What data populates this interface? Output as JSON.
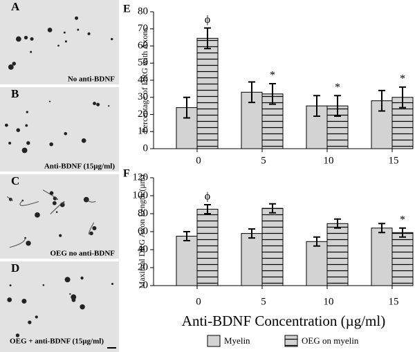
{
  "panels": [
    {
      "label": "A",
      "caption": "No anti-BDNF"
    },
    {
      "label": "B",
      "caption": "Anti-BDNF (15µg/ml)"
    },
    {
      "label": "C",
      "caption": "OEG no anti-BDNF"
    },
    {
      "label": "D",
      "caption": "OEG + anti-BDNF (15µg/ml)"
    }
  ],
  "chart_data": [
    {
      "type": "bar",
      "panel_label": "E",
      "ylabel": "Percentage of DRG with Axons",
      "categories": [
        "0",
        "5",
        "10",
        "15"
      ],
      "series": [
        {
          "name": "Myelin",
          "color": "#d3d3d3",
          "hatch": false,
          "values": [
            24,
            33,
            25,
            28
          ],
          "errors": [
            6,
            6,
            6,
            6
          ],
          "annotations": [
            null,
            null,
            null,
            null
          ]
        },
        {
          "name": "OEG on myelin",
          "color": "#d3d3d3",
          "hatch": true,
          "values": [
            64.5,
            32,
            25,
            30
          ],
          "errors": [
            6,
            6,
            6,
            6
          ],
          "annotations": [
            "ϕ",
            "*",
            "*",
            "*"
          ]
        }
      ],
      "ylim": [
        0,
        80
      ],
      "yticks": [
        0,
        10,
        20,
        30,
        40,
        50,
        60,
        70,
        80
      ]
    },
    {
      "type": "bar",
      "panel_label": "F",
      "ylabel": "Maximal DRG Axon Length (µm)",
      "xlabel": "Anti-BDNF Concentration (µg/ml)",
      "categories": [
        "0",
        "5",
        "10",
        "15"
      ],
      "series": [
        {
          "name": "Myelin",
          "color": "#d3d3d3",
          "hatch": false,
          "values": [
            55,
            58,
            49,
            64
          ],
          "errors": [
            5,
            5,
            5,
            5
          ],
          "annotations": [
            null,
            null,
            null,
            null
          ]
        },
        {
          "name": "OEG on myelin",
          "color": "#d3d3d3",
          "hatch": true,
          "values": [
            85,
            86,
            69,
            59
          ],
          "errors": [
            5,
            5,
            5,
            5
          ],
          "annotations": [
            "ϕ",
            null,
            null,
            "*"
          ]
        }
      ],
      "ylim": [
        0,
        120
      ],
      "yticks": [
        0,
        20,
        40,
        60,
        80,
        100,
        120
      ]
    }
  ]
}
